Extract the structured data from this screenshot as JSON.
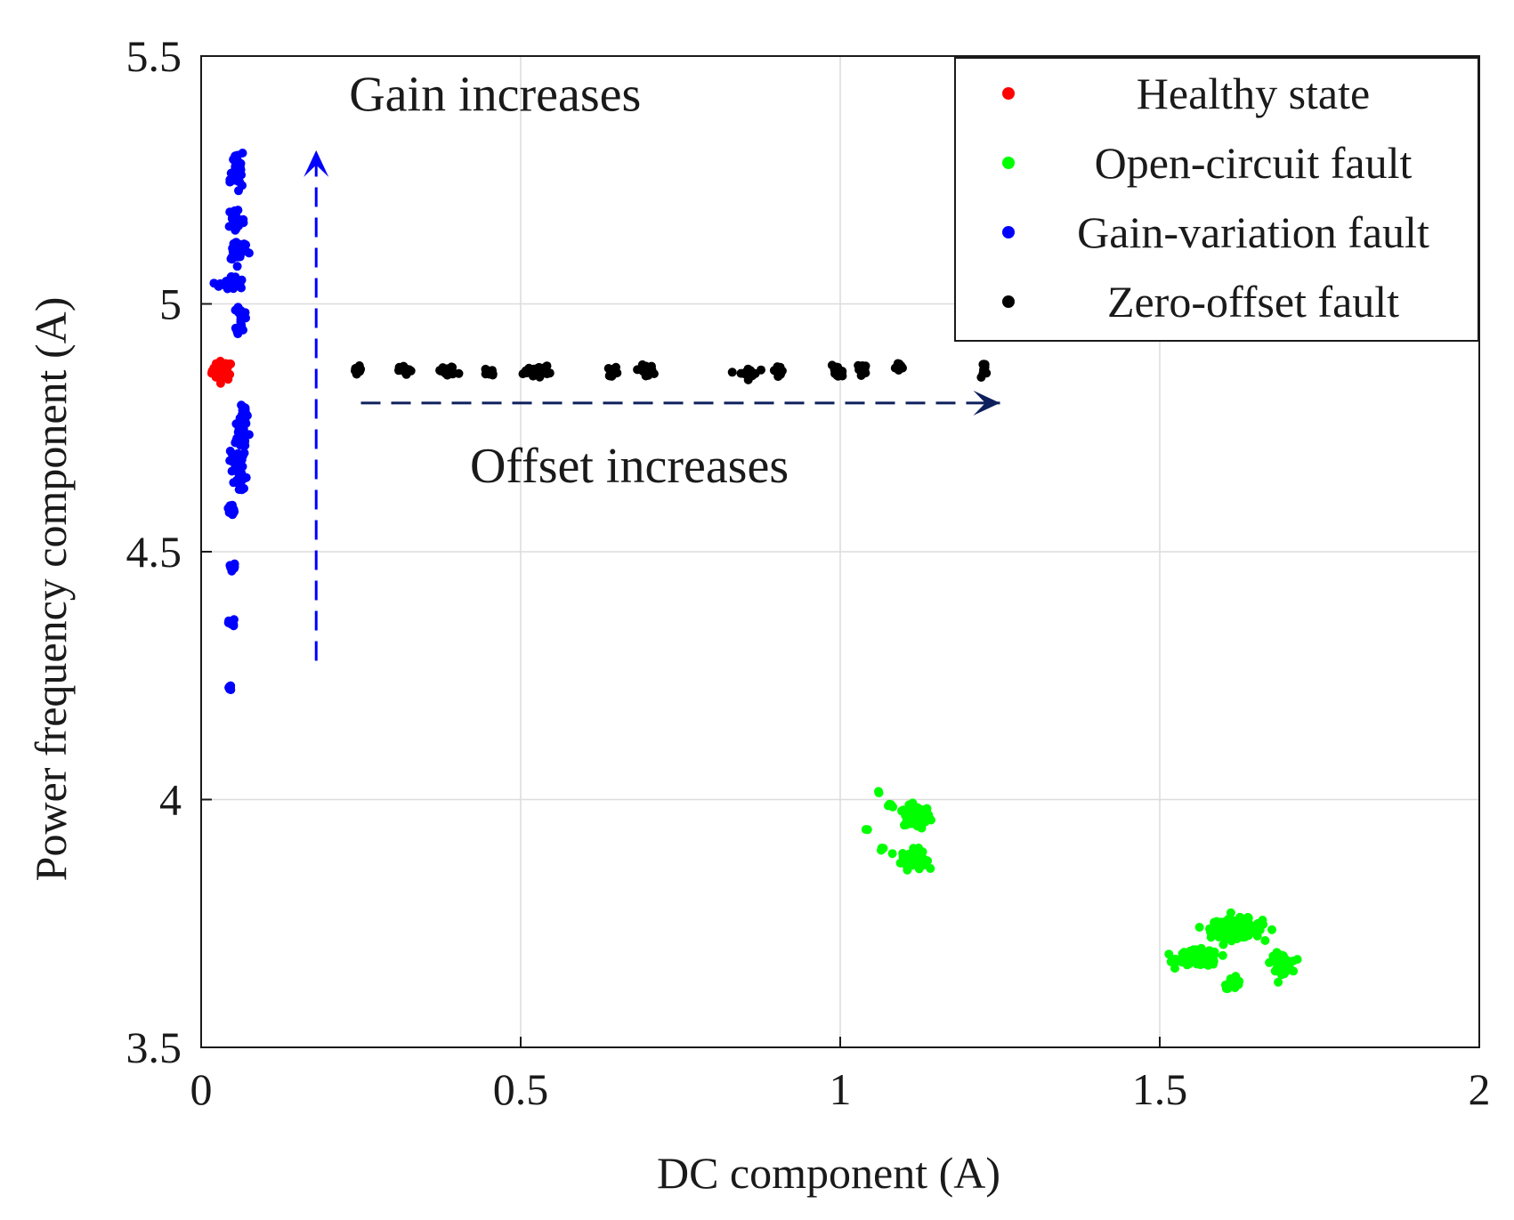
{
  "chart_data": {
    "type": "scatter",
    "xlabel": "DC component (A)",
    "ylabel": "Power frequency component (A)",
    "xlim": [
      0,
      2
    ],
    "ylim": [
      3.5,
      5.5
    ],
    "grid": true,
    "xticks": [
      {
        "value": 0,
        "label": "0"
      },
      {
        "value": 0.5,
        "label": "0.5"
      },
      {
        "value": 1,
        "label": "1"
      },
      {
        "value": 1.5,
        "label": "1.5"
      },
      {
        "value": 2,
        "label": "2"
      }
    ],
    "yticks": [
      {
        "value": 3.5,
        "label": "3.5"
      },
      {
        "value": 4,
        "label": "4"
      },
      {
        "value": 4.5,
        "label": "4.5"
      },
      {
        "value": 5,
        "label": "5"
      },
      {
        "value": 5.5,
        "label": "5.5"
      }
    ],
    "legend_position": "top-right",
    "series": [
      {
        "name": "Healthy state",
        "color": "#ff0000",
        "clusters": [
          {
            "x": 0.033,
            "y": 4.865,
            "sx": 0.01,
            "sy": 0.012,
            "n": 45
          }
        ]
      },
      {
        "name": "Open-circuit fault",
        "color": "#00ff00",
        "clusters": [
          {
            "x": 1.12,
            "y": 3.965,
            "sx": 0.013,
            "sy": 0.014,
            "n": 90
          },
          {
            "x": 1.115,
            "y": 3.88,
            "sx": 0.012,
            "sy": 0.012,
            "n": 70
          },
          {
            "x": 1.08,
            "y": 3.99,
            "sx": 0.004,
            "sy": 0.004,
            "n": 4
          },
          {
            "x": 1.04,
            "y": 3.94,
            "sx": 0.002,
            "sy": 0.002,
            "n": 2
          },
          {
            "x": 1.065,
            "y": 3.9,
            "sx": 0.003,
            "sy": 0.003,
            "n": 3
          },
          {
            "x": 1.06,
            "y": 4.015,
            "sx": 0.002,
            "sy": 0.002,
            "n": 2
          },
          {
            "x": 1.62,
            "y": 3.74,
            "sx": 0.025,
            "sy": 0.012,
            "n": 160
          },
          {
            "x": 1.56,
            "y": 3.68,
            "sx": 0.02,
            "sy": 0.01,
            "n": 110
          },
          {
            "x": 1.615,
            "y": 3.63,
            "sx": 0.008,
            "sy": 0.007,
            "n": 30
          },
          {
            "x": 1.69,
            "y": 3.67,
            "sx": 0.01,
            "sy": 0.012,
            "n": 50
          }
        ]
      },
      {
        "name": "Gain-variation fault",
        "color": "#0000ff",
        "clusters": [
          {
            "x": 0.055,
            "y": 5.28,
            "sx": 0.006,
            "sy": 0.015,
            "n": 25
          },
          {
            "x": 0.055,
            "y": 5.25,
            "sx": 0.006,
            "sy": 0.015,
            "n": 20
          },
          {
            "x": 0.055,
            "y": 5.17,
            "sx": 0.008,
            "sy": 0.018,
            "n": 30
          },
          {
            "x": 0.058,
            "y": 5.11,
            "sx": 0.01,
            "sy": 0.015,
            "n": 30
          },
          {
            "x": 0.048,
            "y": 5.04,
            "sx": 0.012,
            "sy": 0.01,
            "n": 30
          },
          {
            "x": 0.062,
            "y": 4.97,
            "sx": 0.004,
            "sy": 0.02,
            "n": 20
          },
          {
            "x": 0.065,
            "y": 4.78,
            "sx": 0.005,
            "sy": 0.015,
            "n": 20
          },
          {
            "x": 0.06,
            "y": 4.73,
            "sx": 0.008,
            "sy": 0.02,
            "n": 30
          },
          {
            "x": 0.055,
            "y": 4.68,
            "sx": 0.007,
            "sy": 0.015,
            "n": 25
          },
          {
            "x": 0.06,
            "y": 4.64,
            "sx": 0.006,
            "sy": 0.012,
            "n": 15
          },
          {
            "x": 0.047,
            "y": 4.585,
            "sx": 0.003,
            "sy": 0.008,
            "n": 12
          },
          {
            "x": 0.049,
            "y": 4.47,
            "sx": 0.003,
            "sy": 0.005,
            "n": 10
          },
          {
            "x": 0.048,
            "y": 4.355,
            "sx": 0.003,
            "sy": 0.005,
            "n": 10
          },
          {
            "x": 0.045,
            "y": 4.225,
            "sx": 0.003,
            "sy": 0.005,
            "n": 10
          }
        ]
      },
      {
        "name": "Zero-offset fault",
        "color": "#000000",
        "clusters": [
          {
            "x": 0.245,
            "y": 4.865,
            "sx": 0.004,
            "sy": 0.006,
            "n": 12
          },
          {
            "x": 0.32,
            "y": 4.865,
            "sx": 0.006,
            "sy": 0.006,
            "n": 15
          },
          {
            "x": 0.385,
            "y": 4.864,
            "sx": 0.01,
            "sy": 0.006,
            "n": 22
          },
          {
            "x": 0.45,
            "y": 4.863,
            "sx": 0.006,
            "sy": 0.006,
            "n": 14
          },
          {
            "x": 0.525,
            "y": 4.865,
            "sx": 0.012,
            "sy": 0.006,
            "n": 26
          },
          {
            "x": 0.645,
            "y": 4.864,
            "sx": 0.005,
            "sy": 0.006,
            "n": 12
          },
          {
            "x": 0.695,
            "y": 4.865,
            "sx": 0.008,
            "sy": 0.007,
            "n": 20
          },
          {
            "x": 0.855,
            "y": 4.86,
            "sx": 0.01,
            "sy": 0.007,
            "n": 22
          },
          {
            "x": 0.905,
            "y": 4.866,
            "sx": 0.006,
            "sy": 0.005,
            "n": 12
          },
          {
            "x": 0.995,
            "y": 4.862,
            "sx": 0.006,
            "sy": 0.008,
            "n": 16
          },
          {
            "x": 1.035,
            "y": 4.868,
            "sx": 0.005,
            "sy": 0.006,
            "n": 12
          },
          {
            "x": 1.095,
            "y": 4.873,
            "sx": 0.005,
            "sy": 0.006,
            "n": 12
          },
          {
            "x": 1.225,
            "y": 4.87,
            "sx": 0.004,
            "sy": 0.008,
            "n": 12
          }
        ]
      }
    ],
    "annotations": [
      {
        "name": "gain-annotation",
        "text": "Gain increases",
        "color": "#0000ff",
        "arrow_from": [
          0.18,
          4.28
        ],
        "arrow_to": [
          0.18,
          5.31
        ],
        "text_at": [
          0.46,
          5.39
        ]
      },
      {
        "name": "offset-annotation",
        "text": "Offset increases",
        "color": "#0d1f5c",
        "arrow_from": [
          0.25,
          4.8
        ],
        "arrow_to": [
          1.25,
          4.8
        ],
        "text_at": [
          0.67,
          4.64
        ]
      }
    ]
  }
}
